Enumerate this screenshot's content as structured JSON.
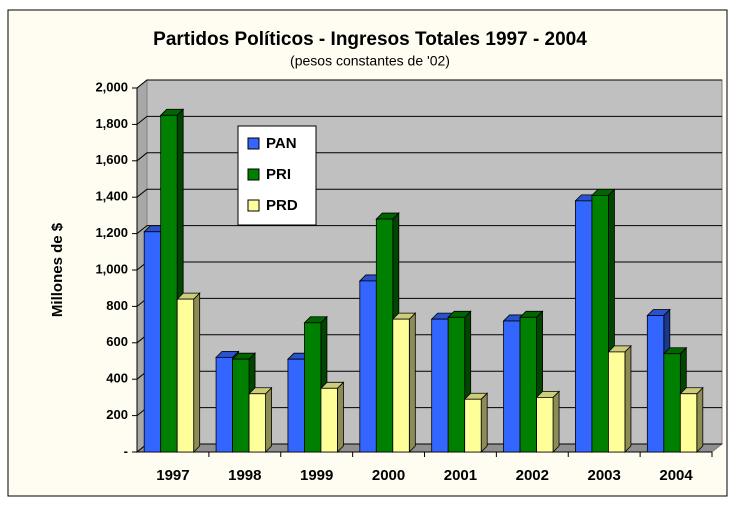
{
  "chart_data": {
    "type": "bar",
    "title": "Partidos Políticos - Ingresos Totales 1997 - 2004",
    "subtitle": "(pesos constantes de '02)",
    "y_label": "Millones de $",
    "categories": [
      "1997",
      "1998",
      "1999",
      "2000",
      "2001",
      "2002",
      "2003",
      "2004"
    ],
    "series": [
      {
        "name": "PAN",
        "color": "#3366ff",
        "values": [
          1210,
          520,
          510,
          940,
          730,
          720,
          1380,
          750
        ]
      },
      {
        "name": "PRI",
        "color": "#008000",
        "values": [
          1850,
          510,
          710,
          1280,
          740,
          740,
          1410,
          540
        ]
      },
      {
        "name": "PRD",
        "color": "#ffff99",
        "values": [
          840,
          320,
          350,
          730,
          290,
          300,
          550,
          320
        ]
      }
    ],
    "ylim": [
      0,
      2000
    ],
    "yticks": [
      {
        "value": 0,
        "label": "-"
      },
      200,
      400,
      600,
      800,
      {
        "value": 1000,
        "label": "1,000"
      },
      {
        "value": 1200,
        "label": "1,200"
      },
      {
        "value": 1400,
        "label": "1,400"
      },
      {
        "value": 1600,
        "label": "1,600"
      },
      {
        "value": 1800,
        "label": "1,800"
      },
      {
        "value": 2000,
        "label": "2,000"
      }
    ],
    "grid": true,
    "legend": "upper-left"
  }
}
